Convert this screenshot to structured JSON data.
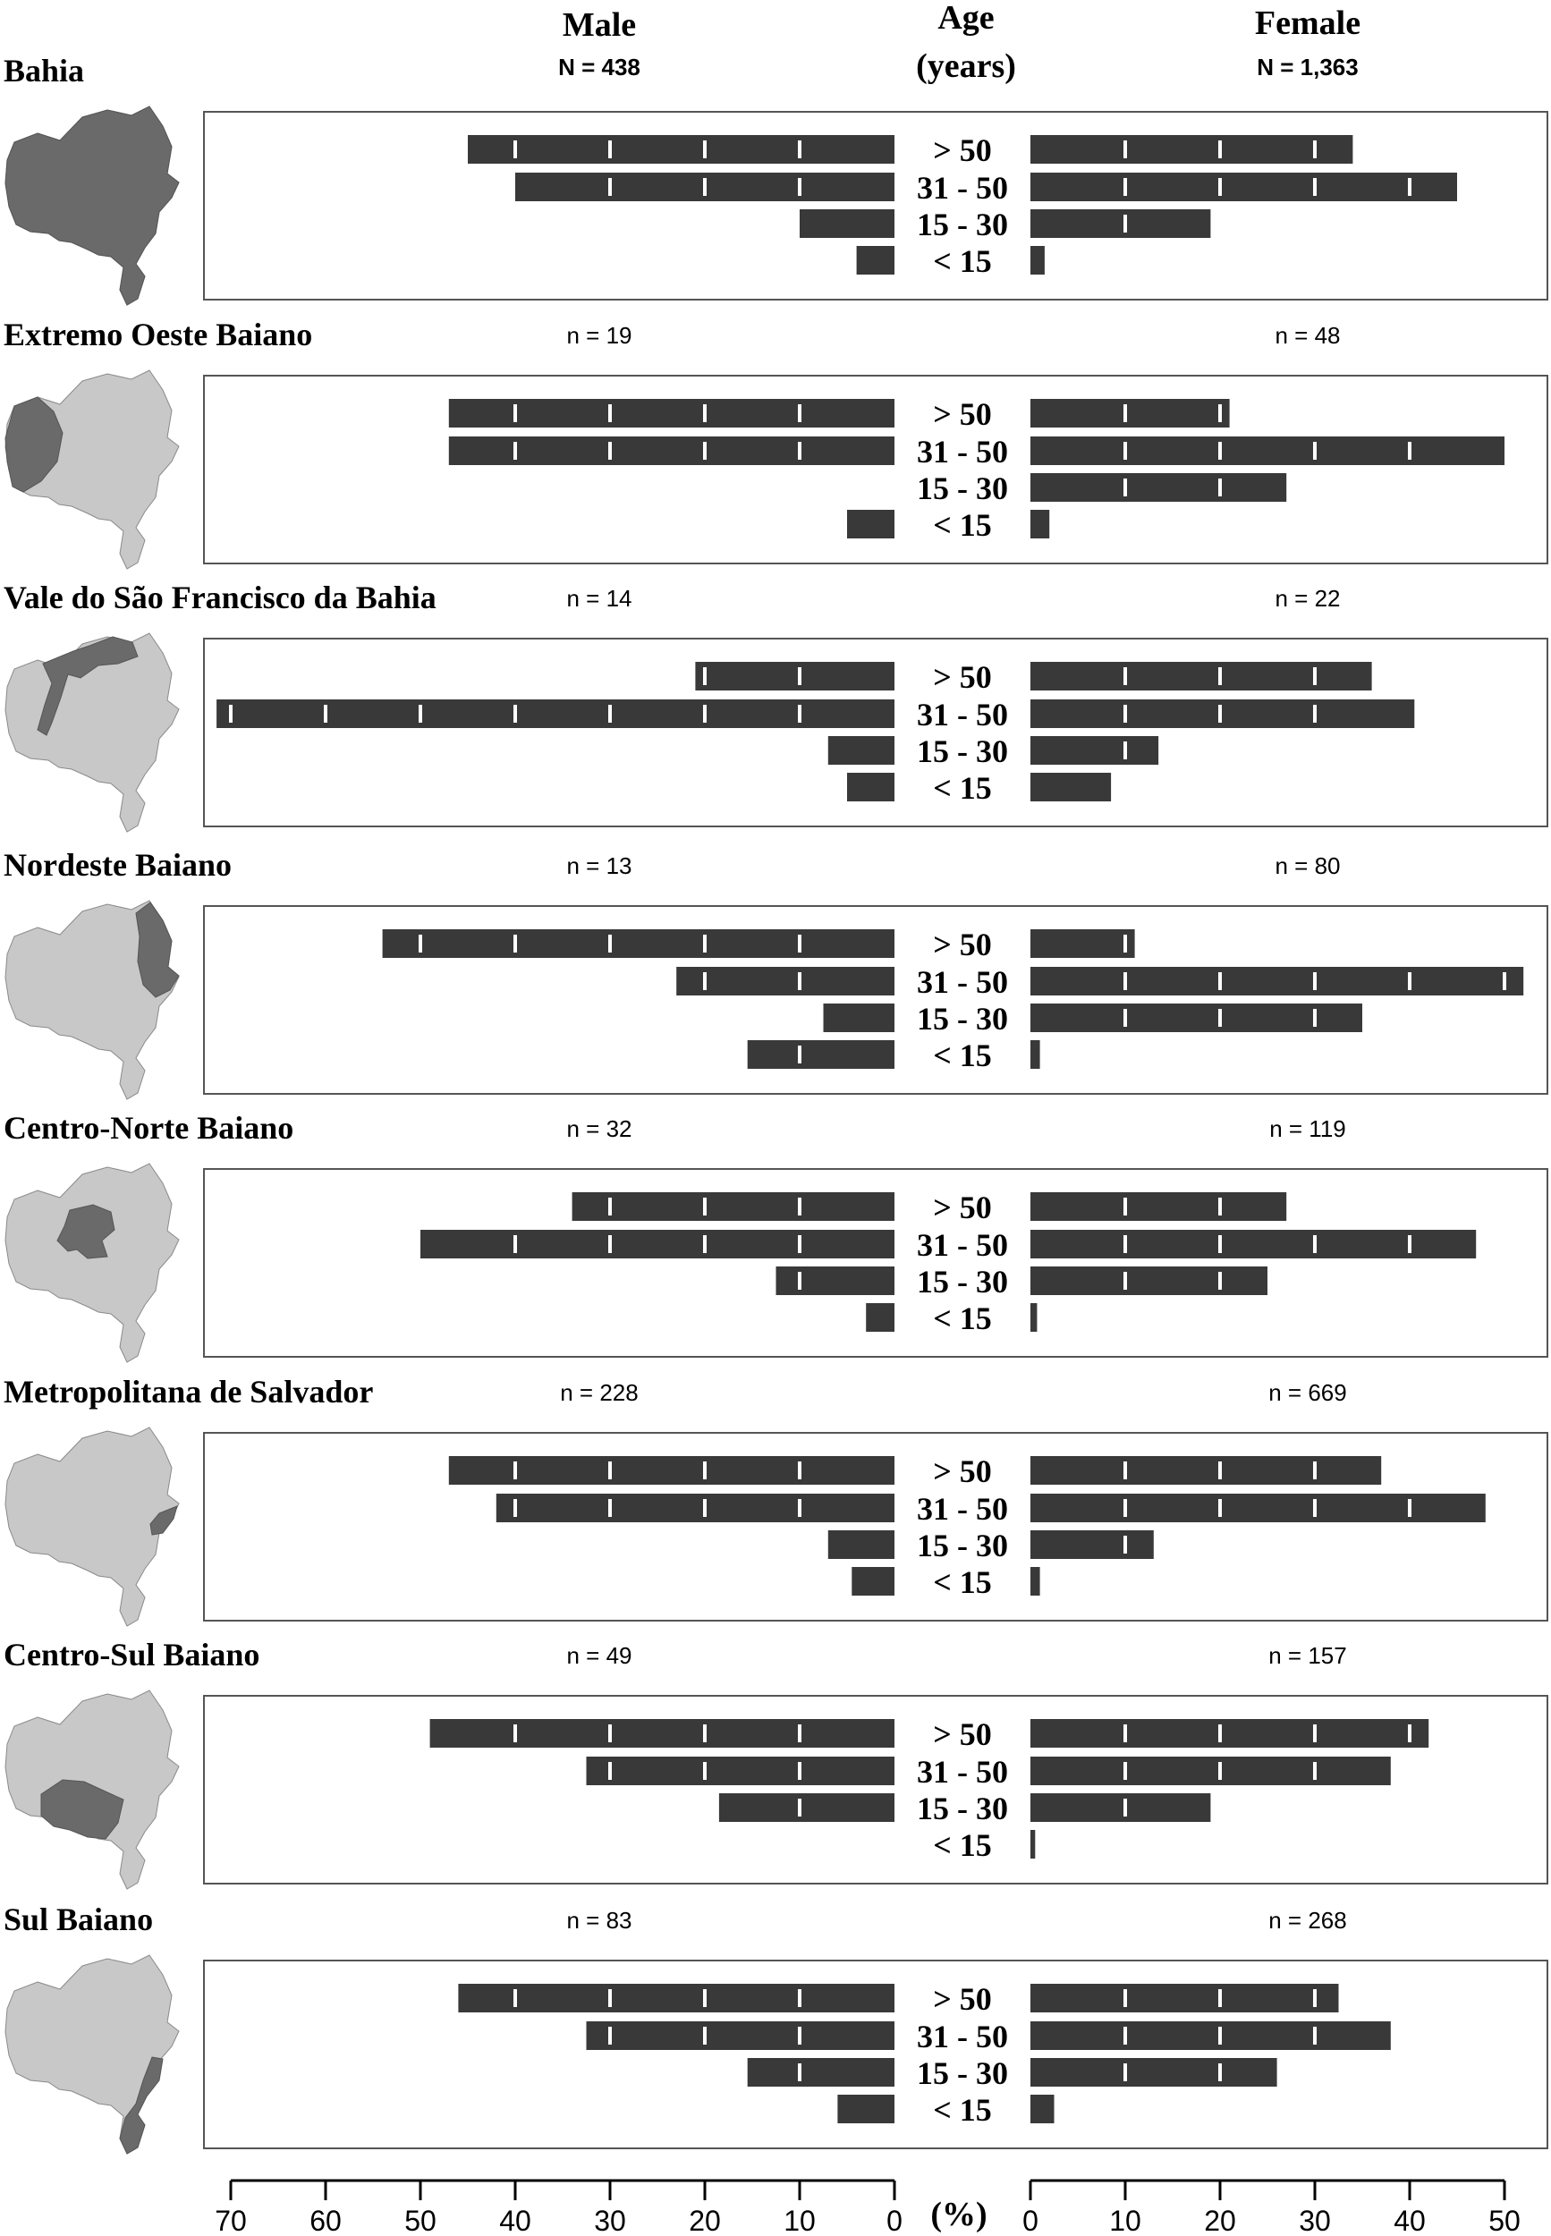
{
  "header": {
    "male_label": "Male",
    "male_n": "N = 438",
    "age_label_line1": "Age",
    "age_label_line2": "(years)",
    "female_label": "Female",
    "female_n": "N = 1,363"
  },
  "colors": {
    "bar": "#393939",
    "map_highlight": "#6a6a6a",
    "map_base": "#c8c8c8",
    "frame": "#555555"
  },
  "chart_data": {
    "type": "bar",
    "orientation": "horizontal",
    "layout": "population-pyramid",
    "categories": [
      "> 50",
      "31 - 50",
      "15 - 30",
      "< 15"
    ],
    "x_unit": "(%)",
    "male_xlim": [
      0,
      70
    ],
    "female_xlim": [
      0,
      50
    ],
    "male_ticks": [
      70,
      60,
      50,
      40,
      30,
      20,
      10,
      0
    ],
    "female_ticks": [
      0,
      10,
      20,
      30,
      40,
      50
    ],
    "panels": [
      {
        "region": "Bahia",
        "male_n": "",
        "female_n": "",
        "male": [
          45,
          40,
          10,
          4
        ],
        "female": [
          34,
          45,
          19,
          1.5
        ]
      },
      {
        "region": "Extremo Oeste Baiano",
        "male_n": "n = 19",
        "female_n": "n = 48",
        "male": [
          47,
          47,
          0,
          5
        ],
        "female": [
          21,
          50,
          27,
          2
        ]
      },
      {
        "region": "Vale do São Francisco da Bahia",
        "male_n": "n = 14",
        "female_n": "n = 22",
        "male": [
          21,
          71.5,
          7,
          5
        ],
        "female": [
          36,
          40.5,
          13.5,
          8.5
        ]
      },
      {
        "region": "Nordeste Baiano",
        "male_n": "n = 13",
        "female_n": "n = 80",
        "male": [
          54,
          23,
          7.5,
          15.5
        ],
        "female": [
          11,
          52,
          35,
          1
        ]
      },
      {
        "region": "Centro-Norte Baiano",
        "male_n": "n = 32",
        "female_n": "n = 119",
        "male": [
          34,
          50,
          12.5,
          3
        ],
        "female": [
          27,
          47,
          25,
          0.7
        ]
      },
      {
        "region": "Metropolitana de Salvador",
        "male_n": "n = 228",
        "female_n": "n = 669",
        "male": [
          47,
          42,
          7,
          4.5
        ],
        "female": [
          37,
          48,
          13,
          1
        ]
      },
      {
        "region": "Centro-Sul Baiano",
        "male_n": "n = 49",
        "female_n": "n = 157",
        "male": [
          49,
          32.5,
          18.5,
          0
        ],
        "female": [
          42,
          38,
          19,
          0.5
        ]
      },
      {
        "region": "Sul Baiano",
        "male_n": "n = 83",
        "female_n": "n = 268",
        "male": [
          46,
          32.5,
          15.5,
          6
        ],
        "female": [
          32.5,
          38,
          26,
          2.5
        ]
      }
    ]
  }
}
